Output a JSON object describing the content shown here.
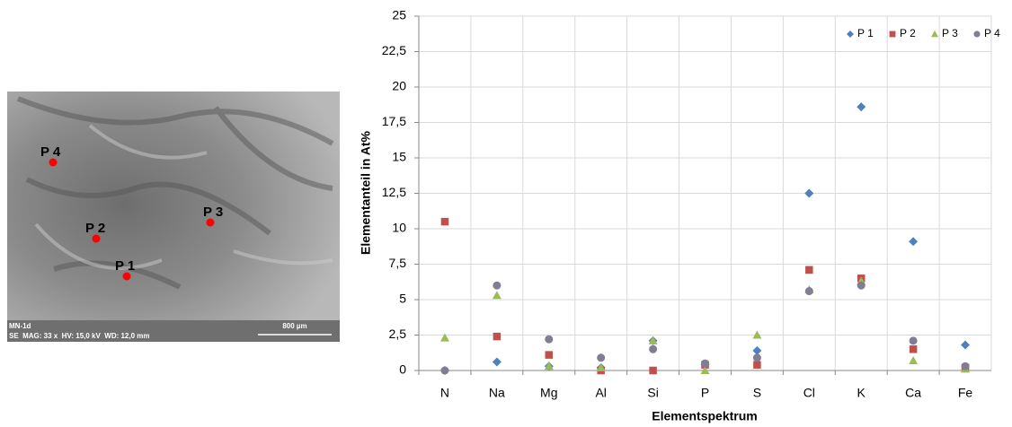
{
  "micrograph": {
    "points": [
      "P 4",
      "P 2",
      "P 3",
      "P 1"
    ],
    "sample": "MN-1d",
    "info": "SE  MAG: 33 x  HV: 15,0 kV  WD: 12,0 mm",
    "scale": "800 µm"
  },
  "chart_data": {
    "type": "scatter",
    "y_label": "Elementanteil in At%",
    "x_label": "Elementspektrum",
    "categories": [
      "N",
      "Na",
      "Mg",
      "Al",
      "Si",
      "P",
      "S",
      "Cl",
      "K",
      "Ca",
      "Fe"
    ],
    "series": [
      {
        "name": "P 1",
        "color": "#4f81bd",
        "marker": "diamond",
        "values": [
          0,
          0.6,
          0.3,
          0.2,
          2.1,
          0.4,
          1.4,
          12.5,
          18.6,
          9.1,
          1.8
        ]
      },
      {
        "name": "P 2",
        "color": "#c0504d",
        "marker": "square",
        "values": [
          10.5,
          2.4,
          1.1,
          0,
          0,
          0.4,
          0.4,
          7.1,
          6.5,
          1.5,
          0.2
        ]
      },
      {
        "name": "P 3",
        "color": "#9bbb59",
        "marker": "triangle",
        "values": [
          2.3,
          5.3,
          0.3,
          0.2,
          2.1,
          0,
          2.5,
          5.7,
          6.3,
          0.7,
          0.1
        ]
      },
      {
        "name": "P 4",
        "color": "#807d95",
        "marker": "circle",
        "values": [
          0,
          6.0,
          2.2,
          0.9,
          1.5,
          0.5,
          0.9,
          5.6,
          6.0,
          2.1,
          0.3
        ]
      }
    ],
    "ylim": [
      0,
      25
    ],
    "yticks": [
      0,
      {
        "value": 2.5,
        "label": "2,5"
      },
      5,
      {
        "value": 7.5,
        "label": "7,5"
      },
      10,
      {
        "value": 12.5,
        "label": "12,5"
      },
      15,
      {
        "value": 17.5,
        "label": "17,5"
      },
      20,
      {
        "value": 22.5,
        "label": "22,5"
      },
      25
    ],
    "grid": true,
    "legend": "top-right"
  }
}
